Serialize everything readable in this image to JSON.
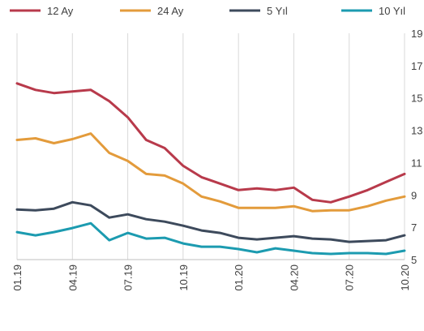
{
  "chart_data": {
    "type": "line",
    "categories": [
      "01.19",
      "02.19",
      "03.19",
      "04.19",
      "05.19",
      "06.19",
      "07.19",
      "08.19",
      "09.19",
      "10.19",
      "11.19",
      "12.19",
      "01.20",
      "02.20",
      "03.20",
      "04.20",
      "05.20",
      "06.20",
      "07.20",
      "08.20",
      "09.20",
      "10.20"
    ],
    "x_tick_labels": [
      "01.19",
      "04.19",
      "07.19",
      "10.19",
      "01.20",
      "04.20",
      "07.20",
      "10.20"
    ],
    "y_tick_labels": [
      "5",
      "7",
      "9",
      "11",
      "13",
      "15",
      "17",
      "19"
    ],
    "ylim": [
      5,
      19
    ],
    "grid": "vertical",
    "legend_position": "top",
    "series": [
      {
        "name": "12 Ay",
        "color": "#b83a4b",
        "values": [
          15.9,
          15.5,
          15.3,
          15.4,
          15.5,
          14.8,
          13.8,
          12.4,
          11.9,
          10.8,
          10.1,
          9.7,
          9.3,
          9.4,
          9.3,
          9.45,
          8.7,
          8.55,
          8.9,
          9.3,
          9.8,
          10.3
        ]
      },
      {
        "name": "24 Ay",
        "color": "#e39b3b",
        "values": [
          12.4,
          12.5,
          12.2,
          12.45,
          12.8,
          11.6,
          11.1,
          10.3,
          10.2,
          9.7,
          8.9,
          8.6,
          8.2,
          8.2,
          8.2,
          8.3,
          8.0,
          8.05,
          8.05,
          8.3,
          8.65,
          8.9
        ]
      },
      {
        "name": "5 Yıl",
        "color": "#3d4a5c",
        "values": [
          8.1,
          8.05,
          8.15,
          8.55,
          8.35,
          7.6,
          7.8,
          7.5,
          7.35,
          7.1,
          6.8,
          6.65,
          6.35,
          6.25,
          6.35,
          6.45,
          6.3,
          6.25,
          6.1,
          6.15,
          6.2,
          6.5
        ]
      },
      {
        "name": "10 Yıl",
        "color": "#1c9bb0",
        "values": [
          6.7,
          6.5,
          6.7,
          6.95,
          7.25,
          6.2,
          6.65,
          6.3,
          6.35,
          6.0,
          5.8,
          5.8,
          5.65,
          5.45,
          5.7,
          5.55,
          5.4,
          5.35,
          5.4,
          5.4,
          5.35,
          5.55
        ]
      }
    ]
  }
}
